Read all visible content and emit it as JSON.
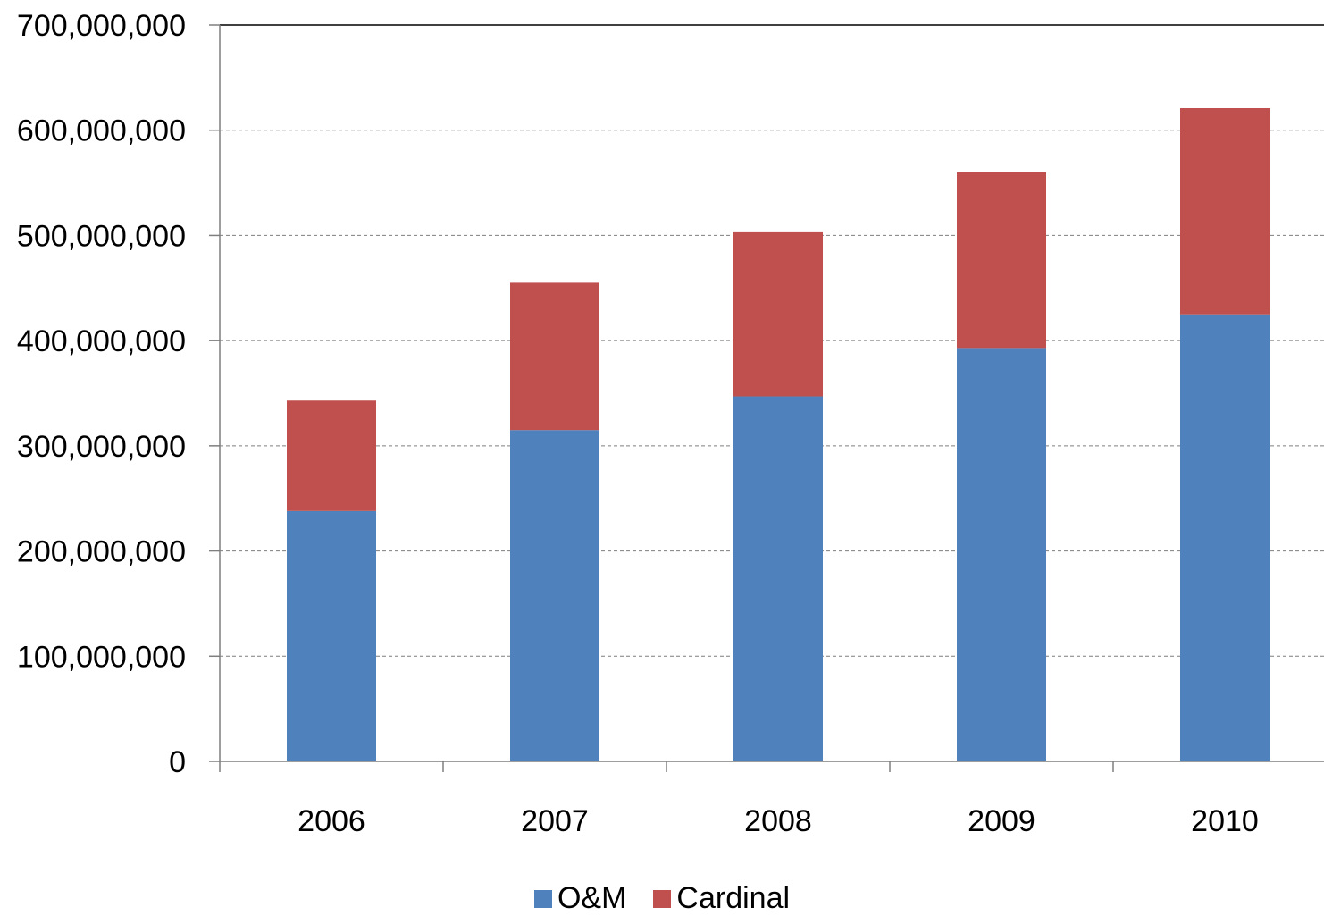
{
  "chart_data": {
    "type": "bar",
    "stacked": true,
    "title": "",
    "xlabel": "",
    "ylabel": "",
    "categories": [
      "2006",
      "2007",
      "2008",
      "2009",
      "2010"
    ],
    "series": [
      {
        "name": "O&M",
        "color": "#4F81BD",
        "values": [
          238000000,
          315000000,
          347000000,
          393000000,
          425000000
        ]
      },
      {
        "name": "Cardinal",
        "color": "#C0504D",
        "values": [
          105000000,
          140000000,
          156000000,
          167000000,
          196000000
        ]
      }
    ],
    "ylim": [
      0,
      700000000
    ],
    "yticks": [
      "0",
      "100,000,000",
      "200,000,000",
      "300,000,000",
      "400,000,000",
      "500,000,000",
      "600,000,000",
      "700,000,000"
    ],
    "grid": true,
    "legend": "bottom-center"
  }
}
